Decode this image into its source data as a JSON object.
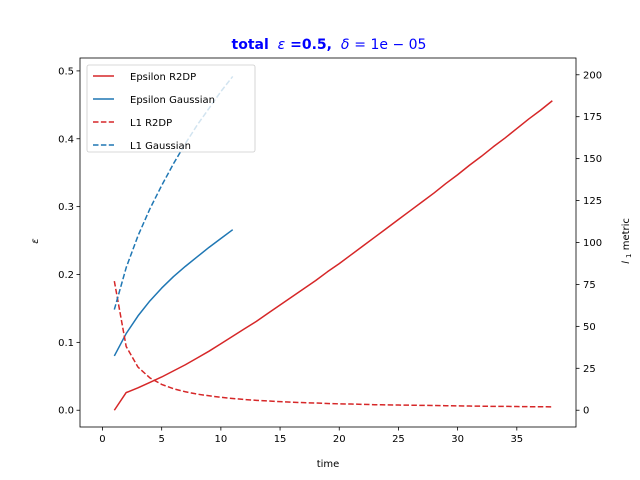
{
  "chart_data": {
    "type": "line",
    "title": "total ε =0.5, δ = 1e − 05",
    "title_parts": {
      "prefix": "total",
      "epsilon_symbol": "ε",
      "epsilon_value": " =0.5,",
      "delta_symbol": "δ",
      "delta_value": " = 1e − 05"
    },
    "title_color": "#0000ff",
    "xlabel": "time",
    "ylabel_left": "ε",
    "ylabel_right": "l1 metric",
    "ylabel_right_parts": {
      "base": "l",
      "sub": "1",
      "rest": " metric"
    },
    "xlim": [
      -1.9,
      40.0
    ],
    "ylim_left": [
      -0.0247,
      0.519
    ],
    "ylim_right": [
      -10.0,
      210.0
    ],
    "x_ticks": [
      0,
      5,
      10,
      15,
      20,
      25,
      30,
      35
    ],
    "x_tick_labels": [
      "0",
      "5",
      "10",
      "15",
      "20",
      "25",
      "30",
      "35"
    ],
    "y_left_ticks": [
      0.0,
      0.1,
      0.2,
      0.3,
      0.4,
      0.5
    ],
    "y_left_tick_labels": [
      "0.0",
      "0.1",
      "0.2",
      "0.3",
      "0.4",
      "0.5"
    ],
    "y_right_ticks": [
      0,
      25,
      50,
      75,
      100,
      125,
      150,
      175,
      200
    ],
    "y_right_tick_labels": [
      "0",
      "25",
      "50",
      "75",
      "100",
      "125",
      "150",
      "175",
      "200"
    ],
    "grid": false,
    "legend_position": "top-left",
    "series": [
      {
        "name": "Epsilon R2DP",
        "axis": "left",
        "color": "#d62728",
        "dash": "solid",
        "x": [
          1,
          2,
          3,
          4,
          5,
          6,
          7,
          8,
          9,
          10,
          11,
          12,
          13,
          14,
          15,
          16,
          17,
          18,
          19,
          20,
          21,
          22,
          23,
          24,
          25,
          26,
          27,
          28,
          29,
          30,
          31,
          32,
          33,
          34,
          35,
          36,
          37,
          38
        ],
        "y": [
          0.0,
          0.026,
          0.033,
          0.041,
          0.049,
          0.058,
          0.067,
          0.077,
          0.087,
          0.098,
          0.109,
          0.12,
          0.131,
          0.143,
          0.155,
          0.167,
          0.179,
          0.191,
          0.204,
          0.216,
          0.229,
          0.242,
          0.255,
          0.268,
          0.281,
          0.294,
          0.307,
          0.32,
          0.334,
          0.347,
          0.361,
          0.374,
          0.388,
          0.401,
          0.415,
          0.429,
          0.442,
          0.456
        ]
      },
      {
        "name": "Epsilon Gaussian",
        "axis": "left",
        "color": "#1f77b4",
        "dash": "solid",
        "x": [
          1,
          2,
          3,
          4,
          5,
          6,
          7,
          8,
          9,
          10,
          11
        ],
        "y": [
          0.08,
          0.113,
          0.139,
          0.161,
          0.18,
          0.197,
          0.212,
          0.226,
          0.24,
          0.253,
          0.266
        ]
      },
      {
        "name": "L1 R2DP",
        "axis": "right",
        "color": "#d62728",
        "dash": "dashed",
        "x": [
          1,
          2,
          3,
          4,
          5,
          6,
          7,
          8,
          9,
          10,
          11,
          12,
          13,
          14,
          15,
          16,
          17,
          18,
          19,
          20,
          21,
          22,
          23,
          24,
          25,
          26,
          27,
          28,
          29,
          30,
          31,
          32,
          33,
          34,
          35,
          36,
          37,
          38
        ],
        "y": [
          77,
          38,
          25.7,
          19.3,
          15.4,
          12.8,
          11.0,
          9.6,
          8.6,
          7.7,
          7.0,
          6.4,
          5.9,
          5.5,
          5.1,
          4.8,
          4.5,
          4.3,
          4.0,
          3.8,
          3.7,
          3.5,
          3.3,
          3.2,
          3.1,
          3.0,
          2.9,
          2.8,
          2.7,
          2.6,
          2.5,
          2.4,
          2.3,
          2.3,
          2.2,
          2.1,
          2.1,
          2.0
        ]
      },
      {
        "name": "L1 Gaussian",
        "axis": "right",
        "color": "#1f77b4",
        "dash": "dashed",
        "x": [
          1,
          2,
          3,
          4,
          5,
          6,
          7,
          8,
          9,
          10,
          11
        ],
        "y": [
          60,
          85,
          104,
          120,
          134,
          147,
          159,
          170,
          180,
          190,
          199
        ]
      }
    ]
  }
}
